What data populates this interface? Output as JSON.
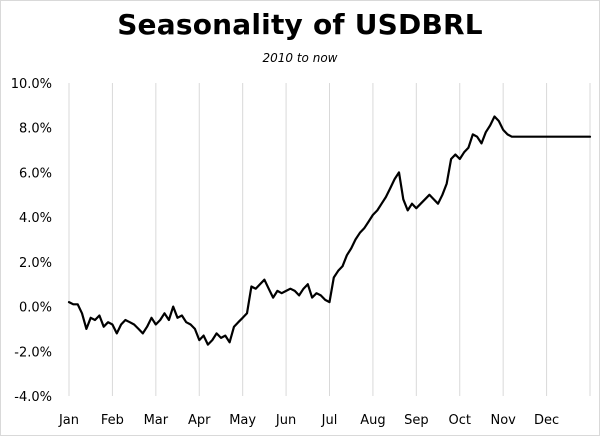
{
  "chart_data": {
    "type": "line",
    "title": "Seasonality of USDBRL",
    "subtitle": "2010 to now",
    "xlabel": "",
    "ylabel": "",
    "x_ticks": [
      "Jan",
      "Feb",
      "Mar",
      "Apr",
      "May",
      "Jun",
      "Jul",
      "Aug",
      "Sep",
      "Oct",
      "Nov",
      "Dec"
    ],
    "y_ticks": [
      "10.0%",
      "8.0%",
      "6.0%",
      "4.0%",
      "2.0%",
      "0.0%",
      "-2.0%",
      "-4.0%"
    ],
    "ylim": [
      -4.0,
      10.0
    ],
    "xlim": [
      0,
      12
    ],
    "grid": "vertical",
    "series": [
      {
        "color": "#000000",
        "x": [
          0.0,
          0.1,
          0.2,
          0.3,
          0.4,
          0.5,
          0.6,
          0.7,
          0.8,
          0.9,
          1.0,
          1.1,
          1.2,
          1.3,
          1.4,
          1.5,
          1.6,
          1.7,
          1.8,
          1.9,
          2.0,
          2.1,
          2.2,
          2.3,
          2.4,
          2.5,
          2.6,
          2.7,
          2.8,
          2.9,
          3.0,
          3.1,
          3.2,
          3.3,
          3.4,
          3.5,
          3.6,
          3.7,
          3.8,
          3.9,
          4.0,
          4.1,
          4.2,
          4.3,
          4.4,
          4.5,
          4.6,
          4.7,
          4.8,
          4.9,
          5.0,
          5.1,
          5.2,
          5.3,
          5.4,
          5.5,
          5.6,
          5.7,
          5.8,
          5.9,
          6.0,
          6.1,
          6.2,
          6.3,
          6.4,
          6.5,
          6.6,
          6.7,
          6.8,
          6.9,
          7.0,
          7.1,
          7.2,
          7.3,
          7.4,
          7.5,
          7.6,
          7.7,
          7.8,
          7.9,
          8.0,
          8.1,
          8.2,
          8.3,
          8.4,
          8.5,
          8.6,
          8.7,
          8.8,
          8.9,
          9.0,
          9.1,
          9.2,
          9.3,
          9.4,
          9.5,
          9.6,
          9.7,
          9.8,
          9.9,
          10.0,
          10.1,
          10.2,
          10.3,
          10.4,
          10.5,
          10.6,
          10.7,
          10.8,
          10.9,
          11.0,
          11.1,
          11.2,
          11.3,
          11.4,
          11.5,
          11.6,
          11.7,
          11.8,
          11.9,
          12.0
        ],
        "values": [
          0.2,
          0.1,
          0.1,
          -0.3,
          -1.0,
          -0.5,
          -0.6,
          -0.4,
          -0.9,
          -0.7,
          -0.8,
          -1.2,
          -0.8,
          -0.6,
          -0.7,
          -0.8,
          -1.0,
          -1.2,
          -0.9,
          -0.5,
          -0.8,
          -0.6,
          -0.3,
          -0.6,
          0.0,
          -0.5,
          -0.4,
          -0.7,
          -0.8,
          -1.0,
          -1.5,
          -1.3,
          -1.7,
          -1.5,
          -1.2,
          -1.4,
          -1.3,
          -1.6,
          -0.9,
          -0.7,
          -0.5,
          -0.3,
          0.9,
          0.8,
          1.0,
          1.2,
          0.8,
          0.4,
          0.7,
          0.6,
          0.7,
          0.8,
          0.7,
          0.5,
          0.8,
          1.0,
          0.4,
          0.6,
          0.5,
          0.3,
          0.2,
          1.3,
          1.6,
          1.8,
          2.3,
          2.6,
          3.0,
          3.3,
          3.5,
          3.8,
          4.1,
          4.3,
          4.6,
          4.9,
          5.3,
          5.7,
          6.0,
          4.8,
          4.3,
          4.6,
          4.4,
          4.6,
          4.8,
          5.0,
          4.8,
          4.6,
          5.0,
          5.5,
          6.6,
          6.8,
          6.6,
          6.9,
          7.1,
          7.7,
          7.6,
          7.3,
          7.8,
          8.1,
          8.5,
          8.3,
          7.9,
          7.7,
          7.6,
          7.6,
          7.6,
          7.6,
          7.6,
          7.6,
          7.6,
          7.6,
          7.6,
          7.6,
          7.6,
          7.6,
          7.6,
          7.6,
          7.6,
          7.6,
          7.6,
          7.6,
          7.6
        ]
      }
    ]
  }
}
